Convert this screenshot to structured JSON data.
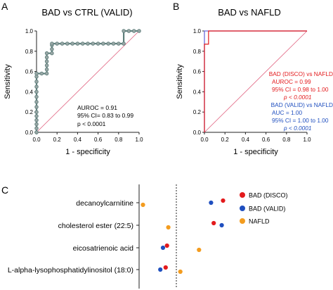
{
  "colors": {
    "axis": "#222222",
    "diagonal": "#e0607e",
    "roc_valid": "#5f7f7c",
    "marker_fill": "#9aa7a6",
    "disco": "#e31a1c",
    "valid": "#1f4fbf",
    "nafld_roc": "#6b6bdc",
    "nafld": "#f39c1f"
  },
  "panels": {
    "A": {
      "letter": "A",
      "title": "BAD vs CTRL (VALID)",
      "xlabel": "1 - specificity",
      "ylabel": "Sensitivity",
      "stats": [
        "AUROC = 0.91",
        "95% CI= 0.83 to 0.99",
        "p < 0.0001"
      ]
    },
    "B": {
      "letter": "B",
      "title": "BAD vs NAFLD",
      "xlabel": "1 - specificity",
      "ylabel": "Sensitivity",
      "stats_disco": [
        "BAD (DISCO) vs NAFLD",
        "AUROC = 0.99",
        "95% CI = 0.98 to 1.00",
        "p < 0.0001"
      ],
      "stats_valid": [
        "BAD (VALID) vs NAFLD",
        "AUC = 1.00",
        "95% CI = 1.00 to 1.00",
        "p < 0.0001"
      ]
    },
    "C": {
      "letter": "C"
    }
  },
  "chart_data": [
    {
      "type": "line",
      "title": "BAD vs CTRL (VALID)",
      "xlabel": "1 - specificity",
      "ylabel": "Sensitivity",
      "xlim": [
        0,
        1
      ],
      "ylim": [
        0,
        1
      ],
      "xticks": [
        "0.0",
        "0.2",
        "0.4",
        "0.6",
        "0.8",
        "1.0"
      ],
      "yticks": [
        "0.0",
        "0.2",
        "0.4",
        "0.6",
        "0.8",
        "1.0"
      ],
      "grid": false,
      "series": [
        {
          "x": [
            0,
            0,
            0,
            0,
            0,
            0,
            0,
            0,
            0,
            0,
            0,
            0,
            0,
            0,
            0.05,
            0.1,
            0.1,
            0.1,
            0.1,
            0.1,
            0.1,
            0.15,
            0.15,
            0.15,
            0.15,
            0.2,
            0.25,
            0.3,
            0.35,
            0.4,
            0.45,
            0.5,
            0.55,
            0.6,
            0.65,
            0.7,
            0.75,
            0.8,
            0.85,
            0.85,
            0.9,
            0.95,
            1.0
          ],
          "y": [
            0,
            0.04,
            0.08,
            0.12,
            0.16,
            0.2,
            0.25,
            0.3,
            0.35,
            0.4,
            0.45,
            0.5,
            0.55,
            0.58,
            0.58,
            0.58,
            0.62,
            0.66,
            0.7,
            0.74,
            0.78,
            0.78,
            0.82,
            0.86,
            0.875,
            0.875,
            0.875,
            0.875,
            0.875,
            0.875,
            0.875,
            0.875,
            0.875,
            0.875,
            0.875,
            0.875,
            0.875,
            0.875,
            0.875,
            1.0,
            1.0,
            1.0,
            1.0
          ]
        },
        {
          "x": [
            0,
            1
          ],
          "y": [
            0,
            1
          ]
        }
      ]
    },
    {
      "type": "line",
      "title": "BAD vs NAFLD",
      "xlabel": "1 - specificity",
      "ylabel": "Sensitivity",
      "xlim": [
        0,
        1
      ],
      "ylim": [
        0,
        1
      ],
      "xticks": [
        "0.0",
        "0.2",
        "0.4",
        "0.6",
        "0.8",
        "1.0"
      ],
      "yticks": [
        "0.0",
        "0.2",
        "0.4",
        "0.6",
        "0.8",
        "1.0"
      ],
      "grid": false,
      "series": [
        {
          "name": "BAD (DISCO) vs NAFLD",
          "x": [
            0,
            0,
            0.04,
            0.04,
            1.0
          ],
          "y": [
            0,
            0.87,
            0.87,
            1.0,
            1.0
          ]
        },
        {
          "name": "BAD (VALID) vs NAFLD",
          "x": [
            0,
            0,
            1.0
          ],
          "y": [
            0,
            1.0,
            1.0
          ]
        },
        {
          "x": [
            0,
            1
          ],
          "y": [
            0,
            1
          ]
        }
      ]
    },
    {
      "type": "scatter",
      "categories": [
        "decanoylcarnitine",
        "cholesterol ester (22:5)",
        "eicosatrienoic acid",
        "L-alpha-lysophosphatidylinositol (18:0)"
      ],
      "legend_position": "right",
      "series": [
        {
          "name": "BAD (DISCO)",
          "values": [
            1.75,
            1.4,
            -0.35,
            -0.4
          ]
        },
        {
          "name": "BAD (VALID)",
          "values": [
            1.3,
            1.7,
            -0.5,
            -0.6
          ]
        },
        {
          "name": "NAFLD",
          "values": [
            -1.25,
            -0.3,
            0.85,
            0.15
          ]
        }
      ]
    }
  ]
}
